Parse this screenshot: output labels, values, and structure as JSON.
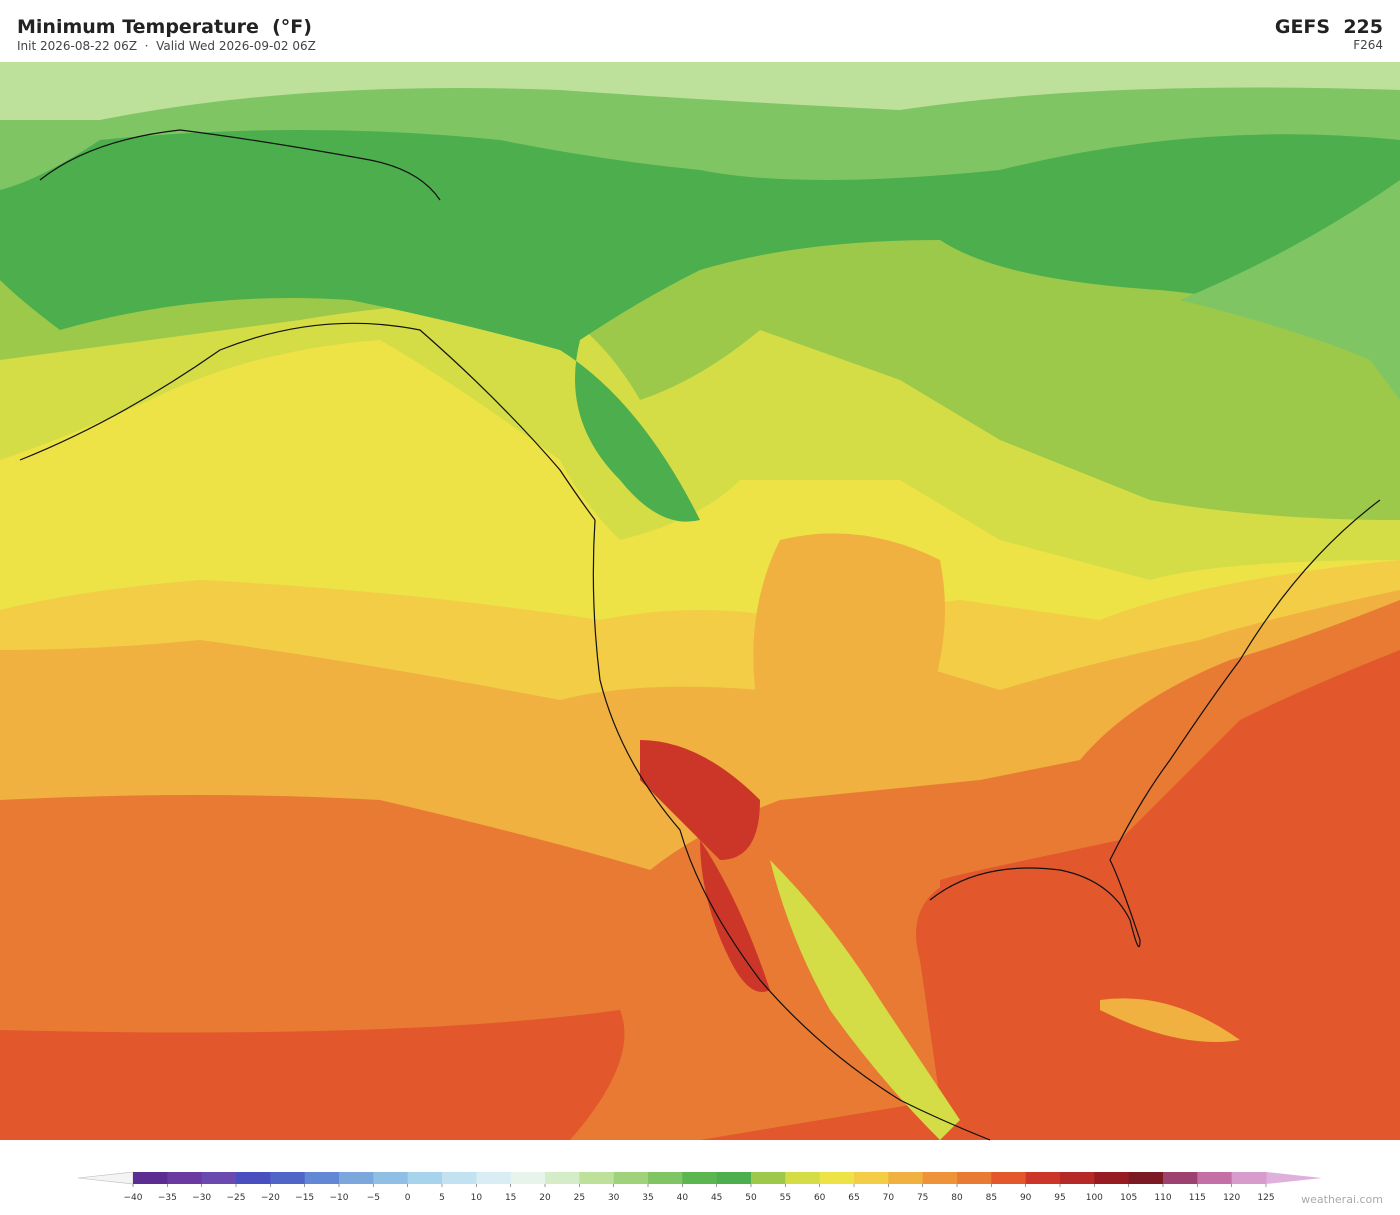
{
  "header": {
    "title": "Minimum Temperature  (°F)",
    "init": "Init 2026-08-22 06Z",
    "valid": "Valid Wed 2026-09-02 06Z",
    "model": "GEFS  225",
    "forecast_hour": "F264"
  },
  "colorbar": {
    "ticks": [
      {
        "value": -40,
        "label": "−40"
      },
      {
        "value": -35,
        "label": "−35"
      },
      {
        "value": -30,
        "label": "−30"
      },
      {
        "value": -25,
        "label": "−25"
      },
      {
        "value": -20,
        "label": "−20"
      },
      {
        "value": -15,
        "label": "−15"
      },
      {
        "value": -10,
        "label": "−10"
      },
      {
        "value": -5,
        "label": "−5"
      },
      0,
      5,
      10,
      15,
      20,
      25,
      30,
      35,
      40,
      45,
      50,
      55,
      60,
      65,
      70,
      75,
      80,
      85,
      90,
      95,
      100,
      105,
      110,
      115,
      120,
      125
    ],
    "colors": [
      "#5b2d91",
      "#6a3aa0",
      "#6b4aaf",
      "#4a4fc0",
      "#4f66c8",
      "#6287d4",
      "#7ba7dc",
      "#8fbfe4",
      "#a7d3ec",
      "#c2e2f1",
      "#d9eef4",
      "#e6f4ec",
      "#d4ecc7",
      "#bde09a",
      "#9fd27a",
      "#7fc563",
      "#5cb650",
      "#4cae4c",
      "#9dc94a",
      "#d4dd45",
      "#ede246",
      "#f3cd46",
      "#f0b141",
      "#ee9339",
      "#e97a33",
      "#e2572c",
      "#cc3628",
      "#b52926",
      "#961c22",
      "#7c1a24",
      "#9d4270",
      "#c270a6",
      "#d89ccc"
    ],
    "under_color": "#f4f4f4",
    "over_color": "#e0b0dc"
  },
  "watermark": "weatherai.com"
}
